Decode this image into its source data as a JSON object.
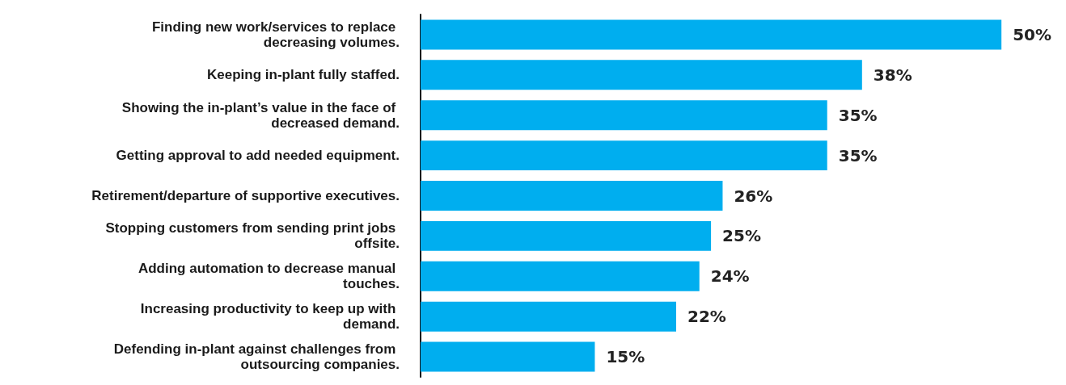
{
  "chart_data": {
    "type": "bar",
    "orientation": "horizontal",
    "categories": [
      "Finding new work/services to replace decreasing volumes.",
      "Keeping in-plant fully staffed.",
      "Showing the in-plant’s value in the face of decreased demand.",
      "Getting approval to add needed equipment.",
      "Retirement/departure of supportive executives.",
      "Stopping customers from sending print jobs offsite.",
      "Adding automation to decrease manual touches.",
      "Increasing productivity to keep up with demand.",
      "Defending in-plant against challenges from outsourcing companies."
    ],
    "values": [
      50,
      38,
      35,
      35,
      26,
      25,
      24,
      22,
      15
    ],
    "value_labels": [
      "50%",
      "38%",
      "35%",
      "35%",
      "26%",
      "25%",
      "24%",
      "22%",
      "15%"
    ],
    "color": "#00aeef"
  }
}
